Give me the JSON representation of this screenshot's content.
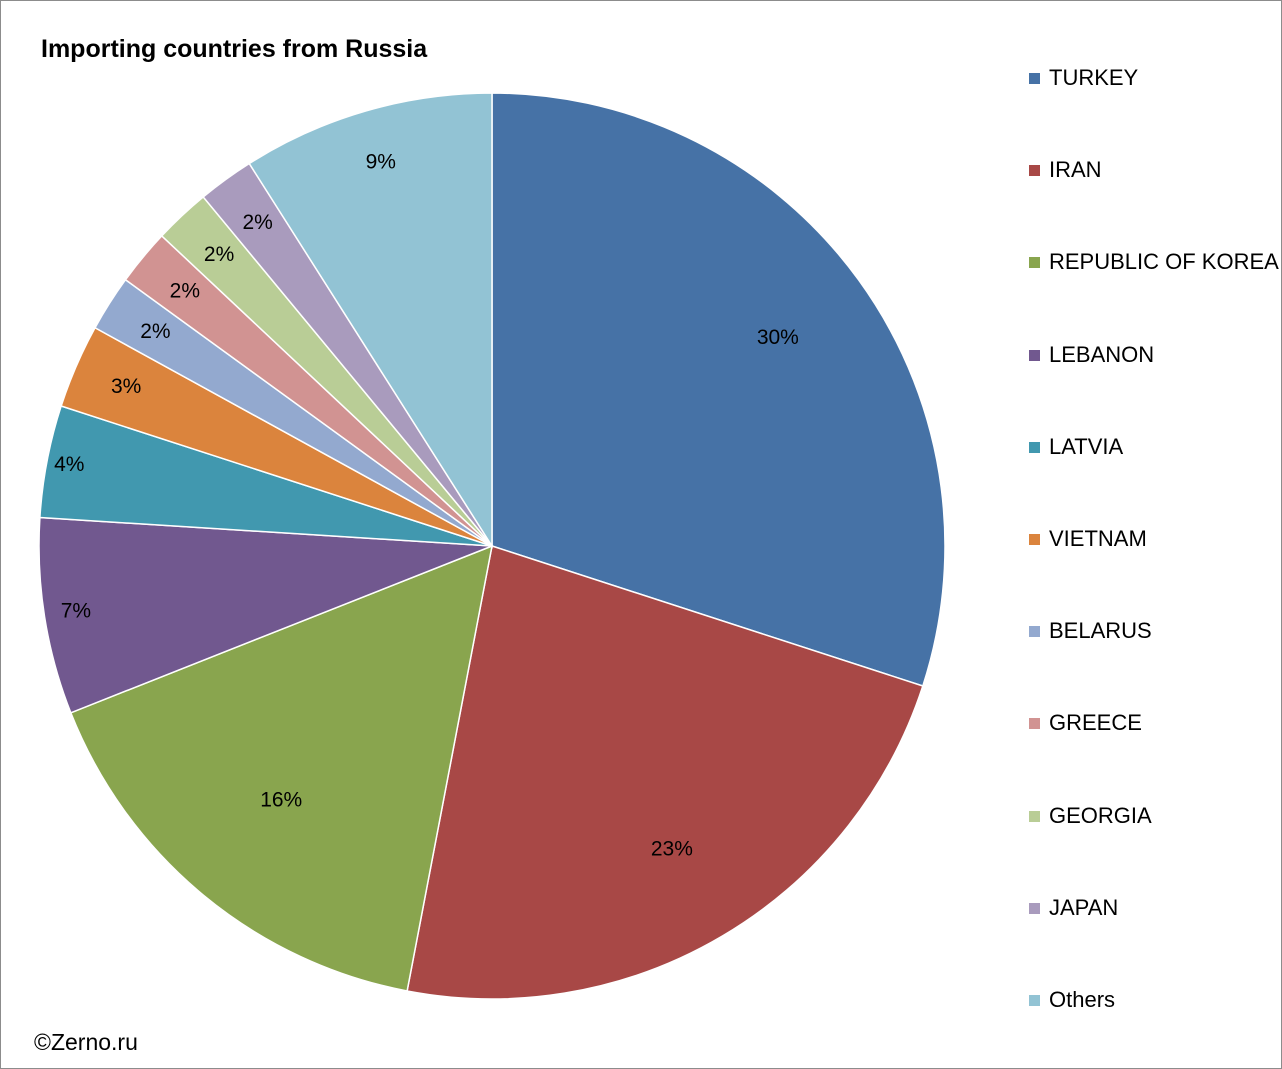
{
  "chart_data": {
    "type": "pie",
    "title": "Importing countries from Russia",
    "categories": [
      "TURKEY",
      "IRAN",
      "REPUBLIC OF KOREA",
      "LEBANON",
      "LATVIA",
      "VIETNAM",
      "BELARUS",
      "GREECE",
      "GEORGIA",
      "JAPAN",
      "Others"
    ],
    "values": [
      30,
      23,
      16,
      7,
      4,
      3,
      2,
      2,
      2,
      2,
      9
    ],
    "labels": [
      "30%",
      "23%",
      "16%",
      "7%",
      "4%",
      "3%",
      "2%",
      "2%",
      "2%",
      "2%",
      "9%"
    ],
    "colors": [
      "#4672a6",
      "#a84846",
      "#89a54e",
      "#71588f",
      "#4198af",
      "#db843d",
      "#93a9cf",
      "#d19392",
      "#b9cd96",
      "#a99bbd",
      "#92c3d4"
    ],
    "legend_position": "right"
  },
  "footer": {
    "copyright": "©Zerno.ru"
  }
}
